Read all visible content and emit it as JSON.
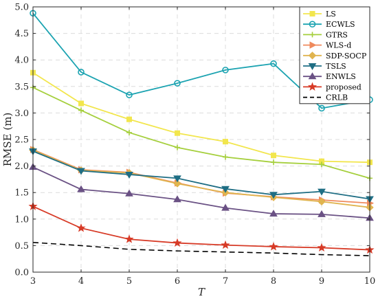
{
  "chart_data": {
    "type": "line",
    "xlabel": "T",
    "ylabel": "RMSE (m)",
    "x": [
      3,
      4,
      5,
      6,
      7,
      8,
      9,
      10
    ],
    "xlim": [
      3,
      10
    ],
    "ylim": [
      0,
      5
    ],
    "xticks": [
      "3",
      "4",
      "5",
      "6",
      "7",
      "8",
      "9",
      "10"
    ],
    "yticks": [
      "0.0",
      "0.5",
      "1.0",
      "1.5",
      "2.0",
      "2.5",
      "3.0",
      "3.5",
      "4.0",
      "4.5",
      "5.0"
    ],
    "grid": true,
    "legend_position": "top-right",
    "series": [
      {
        "name": "LS",
        "color": "#f2e64d",
        "marker": "square",
        "dash": false,
        "values": [
          3.76,
          3.18,
          2.88,
          2.62,
          2.46,
          2.2,
          2.09,
          2.07
        ]
      },
      {
        "name": "ECWLS",
        "color": "#1ba3b1",
        "marker": "circle",
        "dash": false,
        "values": [
          4.88,
          3.77,
          3.34,
          3.56,
          3.81,
          3.93,
          3.09,
          3.25
        ]
      },
      {
        "name": "GTRS",
        "color": "#a5cf3c",
        "marker": "plus",
        "dash": false,
        "values": [
          3.48,
          3.05,
          2.63,
          2.35,
          2.17,
          2.07,
          2.03,
          1.77
        ]
      },
      {
        "name": "WLS-d",
        "color": "#ef8a5c",
        "marker": "triangle-right",
        "dash": false,
        "values": [
          2.31,
          1.93,
          1.88,
          1.68,
          1.49,
          1.42,
          1.36,
          1.3
        ]
      },
      {
        "name": "SDP-SOCP",
        "color": "#e0b44f",
        "marker": "diamond",
        "dash": false,
        "values": [
          2.3,
          1.92,
          1.87,
          1.67,
          1.5,
          1.41,
          1.33,
          1.22
        ]
      },
      {
        "name": "TSLS",
        "color": "#1f6e84",
        "marker": "triangle-down",
        "dash": false,
        "values": [
          2.28,
          1.91,
          1.84,
          1.77,
          1.57,
          1.46,
          1.52,
          1.38
        ]
      },
      {
        "name": "ENWLS",
        "color": "#6a5184",
        "marker": "triangle-up",
        "dash": false,
        "values": [
          1.98,
          1.56,
          1.48,
          1.37,
          1.21,
          1.1,
          1.09,
          1.02
        ]
      },
      {
        "name": "proposed",
        "color": "#d73a26",
        "marker": "star",
        "dash": false,
        "values": [
          1.24,
          0.83,
          0.62,
          0.55,
          0.51,
          0.48,
          0.46,
          0.42
        ]
      },
      {
        "name": "CRLB",
        "color": "#000000",
        "marker": "none",
        "dash": true,
        "values": [
          0.56,
          0.5,
          0.43,
          0.4,
          0.38,
          0.36,
          0.33,
          0.31
        ]
      }
    ]
  }
}
